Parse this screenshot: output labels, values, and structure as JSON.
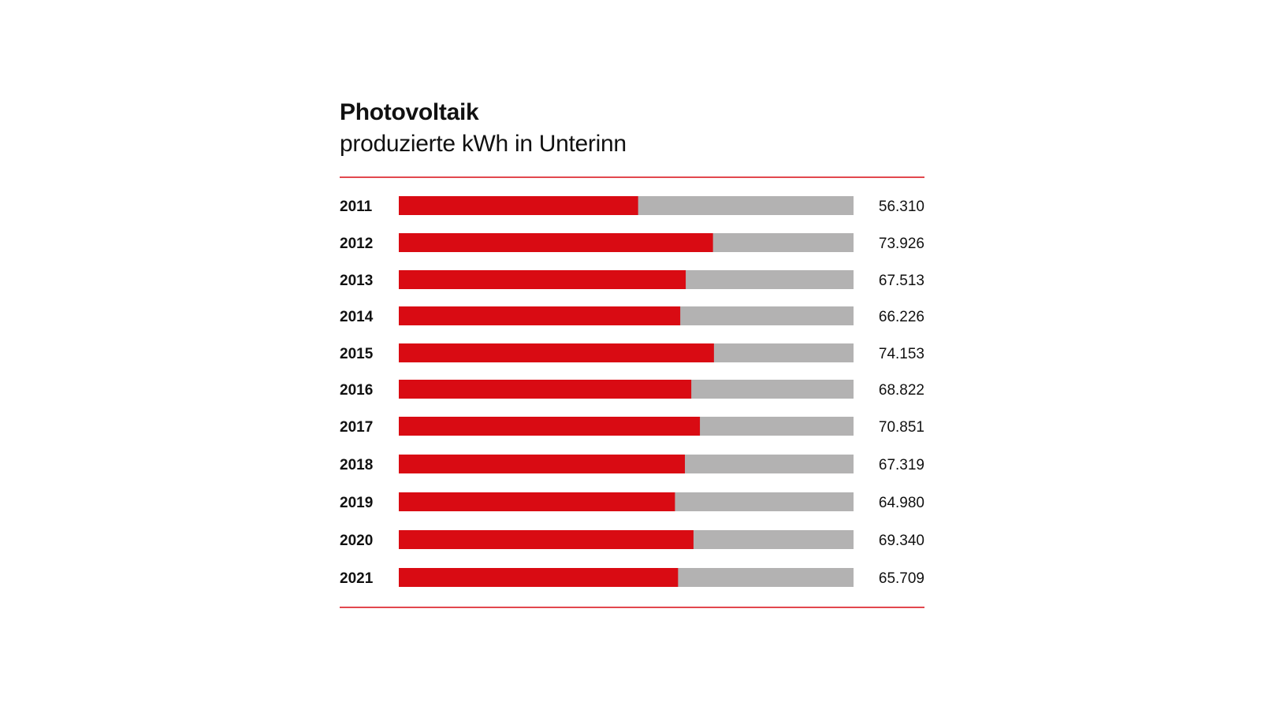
{
  "colors": {
    "bar": "#d90b13",
    "track": "#b3b2b2",
    "rule": "#d90b13"
  },
  "chart_data": {
    "type": "bar",
    "orientation": "horizontal",
    "title": "Photovoltaik",
    "subtitle": "produzierte kWh in Unterinn",
    "categories": [
      "2011",
      "2012",
      "2013",
      "2014",
      "2015",
      "2016",
      "2017",
      "2018",
      "2019",
      "2020",
      "2021"
    ],
    "values": [
      56310,
      73926,
      67513,
      66226,
      74153,
      68822,
      70851,
      67319,
      64980,
      69340,
      65709
    ],
    "value_labels": [
      "56.310",
      "73.926",
      "67.513",
      "66.226",
      "74.153",
      "68.822",
      "70.851",
      "67.319",
      "64.980",
      "69.340",
      "65.709"
    ],
    "xlim": [
      0,
      107000
    ],
    "grid": false,
    "legend": "none"
  }
}
